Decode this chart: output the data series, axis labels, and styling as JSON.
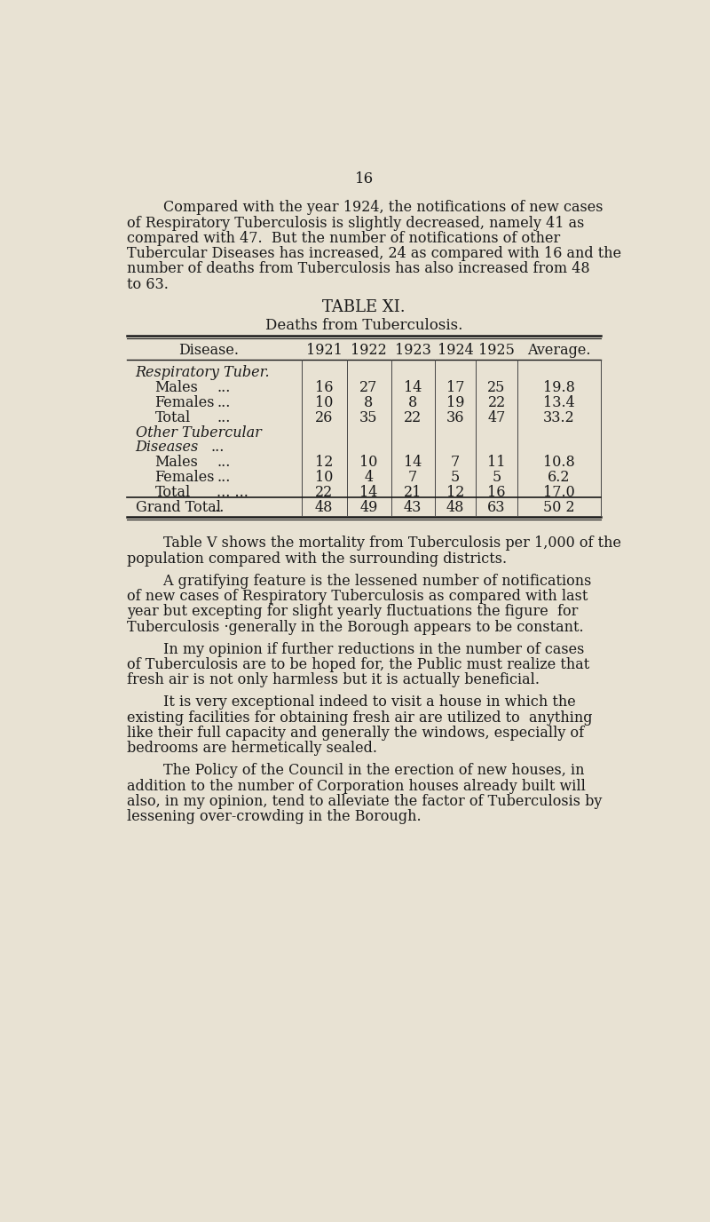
{
  "page_number": "16",
  "bg_color": "#e8e2d3",
  "text_color": "#1a1a1a",
  "paragraph1_indent": "        Compared with the year 1924, the notifications of new cases",
  "paragraph1_lines": [
    "        Compared with the year 1924, the notifications of new cases",
    "of Respiratory Tuberculosis is slightly decreased, namely 41 as",
    "compared with 47.  But the number of notifications of other",
    "Tubercular Diseases has increased, 24 as compared with 16 and the",
    "number of deaths from Tuberculosis has also increased from 48",
    "to 63."
  ],
  "table_title": "TABLE XI.",
  "table_subtitle": "Deaths from Tuberculosis.",
  "col_headers": [
    "Disease.",
    "1921",
    "1922",
    "1923",
    "1924",
    "1925",
    "Average."
  ],
  "table_rows": [
    {
      "label": "Respiratory Tuber.",
      "label2": "",
      "indent": 0,
      "italic": true,
      "dots": false,
      "grand": false,
      "values": [
        "",
        "",
        "",
        "",
        "",
        ""
      ]
    },
    {
      "label": "Males",
      "label2": "...",
      "indent": 1,
      "italic": false,
      "dots": true,
      "grand": false,
      "values": [
        "16",
        "27",
        "14",
        "17",
        "25",
        "19.8"
      ]
    },
    {
      "label": "Females",
      "label2": "...",
      "indent": 1,
      "italic": false,
      "dots": true,
      "grand": false,
      "values": [
        "10",
        "8",
        "8",
        "19",
        "22",
        "13.4"
      ]
    },
    {
      "label": "Total",
      "label2": "...",
      "indent": 1,
      "italic": false,
      "dots": true,
      "grand": false,
      "values": [
        "26",
        "35",
        "22",
        "36",
        "47",
        "33.2"
      ]
    },
    {
      "label": "Other Tubercular",
      "label2": "",
      "indent": 0,
      "italic": true,
      "dots": false,
      "grand": false,
      "values": [
        "",
        "",
        "",
        "",
        "",
        ""
      ]
    },
    {
      "label": "Diseases",
      "label2": "...",
      "indent": 0,
      "italic": true,
      "dots": true,
      "grand": false,
      "values": [
        "",
        "",
        "",
        "",
        "",
        ""
      ]
    },
    {
      "label": "Males",
      "label2": "...",
      "indent": 1,
      "italic": false,
      "dots": true,
      "grand": false,
      "values": [
        "12",
        "10",
        "14",
        "7",
        "11",
        "10.8"
      ]
    },
    {
      "label": "Females",
      "label2": "...",
      "indent": 1,
      "italic": false,
      "dots": true,
      "grand": false,
      "values": [
        "10",
        "4",
        "7",
        "5",
        "5",
        "6.2"
      ]
    },
    {
      "label": "Total",
      "label2": "... ...",
      "indent": 1,
      "italic": false,
      "dots": true,
      "grand": false,
      "values": [
        "22",
        "14",
        "21",
        "12",
        "16",
        "17.0"
      ]
    },
    {
      "label": "Grand Total",
      "label2": "...",
      "indent": 0,
      "italic": false,
      "dots": true,
      "grand": true,
      "values": [
        "48",
        "49",
        "43",
        "48",
        "63",
        "50 2"
      ]
    }
  ],
  "paragraph2_lines": [
    "        Table V shows the mortality from Tuberculosis per 1,000 of the",
    "population compared with the surrounding districts."
  ],
  "paragraph3_lines": [
    "        A gratifying feature is the lessened number of notifications",
    "of new cases of Respiratory Tuberculosis as compared with last",
    "year but excepting for slight yearly fluctuations the figure  for",
    "Tuberculosis ·generally in the Borough appears to be constant."
  ],
  "paragraph4_lines": [
    "        In my opinion if further reductions in the number of cases",
    "of Tuberculosis are to be hoped for, the Public must realize that",
    "fresh air is not only harmless but it is actually beneficial."
  ],
  "paragraph5_lines": [
    "        It is very exceptional indeed to visit a house in which the",
    "existing facilities for obtaining fresh air are utilized to  anything",
    "like their full capacity and generally the windows, especially of",
    "bedrooms are hermetically sealed."
  ],
  "paragraph6_lines": [
    "        The Policy of the Council in the erection of new houses, in",
    "addition to the number of Corporation houses already built will",
    "also, in my opinion, tend to alleviate the factor of Tuberculosis by",
    "lessening over-crowding in the Borough."
  ]
}
